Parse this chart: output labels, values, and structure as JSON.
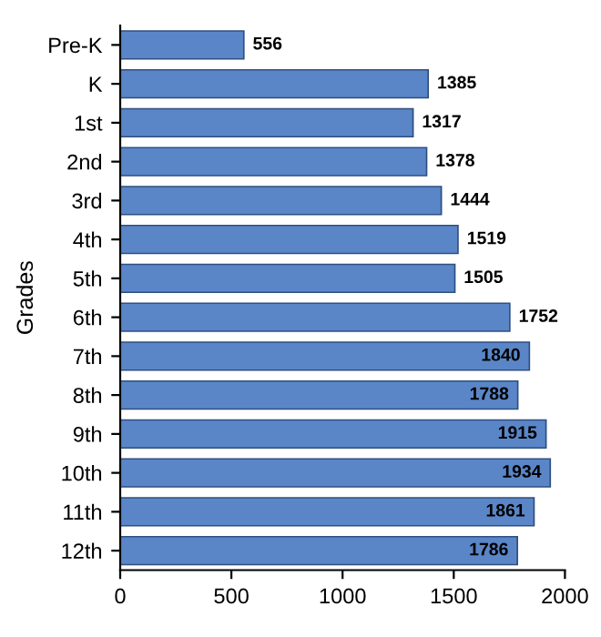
{
  "chart_data": {
    "type": "bar",
    "orientation": "horizontal",
    "ylabel": "Grades",
    "categories": [
      "Pre-K",
      "K",
      "1st",
      "2nd",
      "3rd",
      "4th",
      "5th",
      "6th",
      "7th",
      "8th",
      "9th",
      "10th",
      "11th",
      "12th"
    ],
    "values": [
      556,
      1385,
      1317,
      1378,
      1444,
      1519,
      1505,
      1752,
      1840,
      1788,
      1915,
      1934,
      1861,
      1786
    ],
    "color": "#5a86c8",
    "xlim": [
      0,
      2000
    ],
    "xticks": [
      0,
      500,
      1000,
      1500,
      2000
    ],
    "data_labels": true,
    "grid": false,
    "legend": false
  }
}
